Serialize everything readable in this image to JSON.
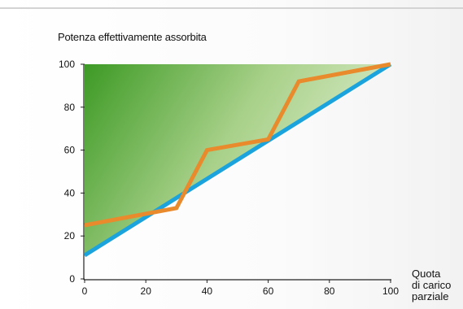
{
  "chart_data": {
    "type": "line",
    "title": "Potenza effettivamente assorbita",
    "xlabel": [
      "Quota",
      "di carico",
      "parziale"
    ],
    "ylabel": "",
    "xlim": [
      0,
      100
    ],
    "ylim": [
      0,
      100
    ],
    "x_ticks": [
      0,
      20,
      40,
      60,
      80,
      100
    ],
    "y_ticks": [
      0,
      20,
      40,
      60,
      80,
      100
    ],
    "grid": false,
    "shaded_region": "above blue line",
    "series": [
      {
        "color": "#e98a2c",
        "x": [
          0,
          30,
          40,
          60,
          70,
          100
        ],
        "y": [
          25,
          33,
          60,
          65,
          92,
          100
        ]
      },
      {
        "color": "#1aa3dc",
        "x": [
          0,
          100
        ],
        "y": [
          11,
          100
        ]
      }
    ]
  }
}
